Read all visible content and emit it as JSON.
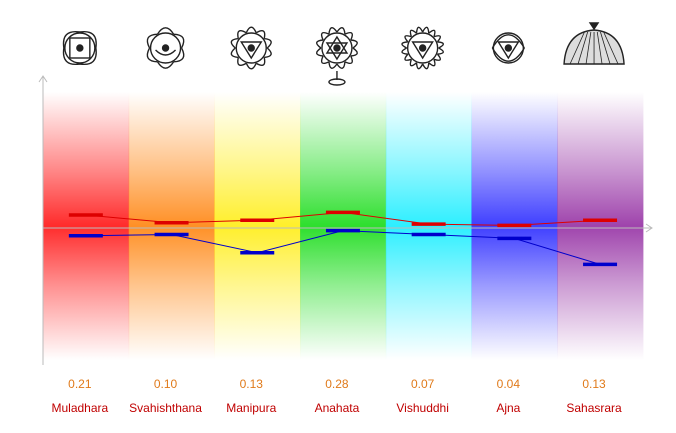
{
  "chart_data": {
    "type": "line",
    "title": "",
    "xlabel": "",
    "ylabel": "",
    "ylim": [
      -1,
      1
    ],
    "grid": false,
    "legend": "none",
    "categories": [
      "Muladhara",
      "Svahishthana",
      "Manipura",
      "Anahata",
      "Vishuddhi",
      "Ajna",
      "Sahasrara"
    ],
    "scores": [
      "0.21",
      "0.10",
      "0.13",
      "0.28",
      "0.07",
      "0.04",
      "0.13"
    ],
    "band_colors": [
      "#ff2020",
      "#ff8a1a",
      "#ffee20",
      "#22dd22",
      "#22eeff",
      "#3535ff",
      "#9a3aa8"
    ],
    "icons": [
      "muladhara-symbol-icon",
      "svadhishthana-symbol-icon",
      "manipura-symbol-icon",
      "anahata-symbol-icon",
      "vishuddha-symbol-icon",
      "ajna-symbol-icon",
      "sahasrara-symbol-icon"
    ],
    "series": [
      {
        "color": "#dd0000",
        "values": [
          0.1,
          0.04,
          0.06,
          0.12,
          0.03,
          0.02,
          0.06
        ]
      },
      {
        "color": "#0000cc",
        "values": [
          -0.06,
          -0.05,
          -0.19,
          -0.02,
          -0.05,
          -0.08,
          -0.28
        ]
      }
    ]
  }
}
